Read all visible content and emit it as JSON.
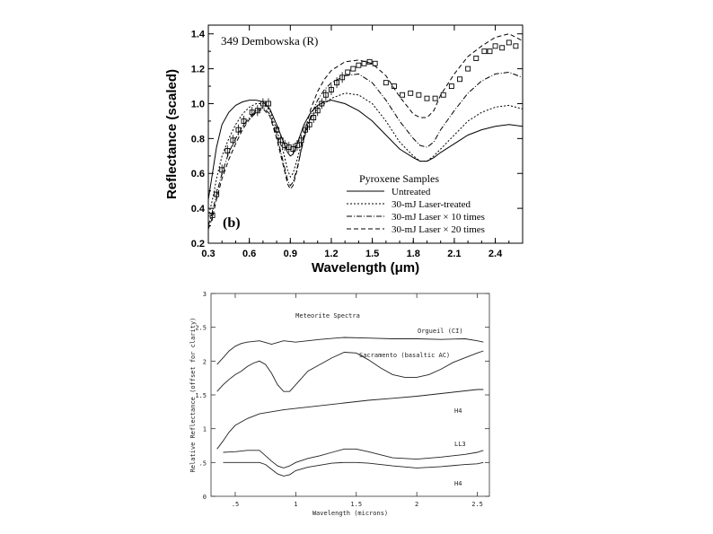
{
  "chart_data": [
    {
      "type": "line",
      "title": "349 Dembowska (R)",
      "panel_label": "(b)",
      "xlabel": "Wavelength (μm)",
      "ylabel": "Reflectance (scaled)",
      "xlim": [
        0.3,
        2.6
      ],
      "ylim": [
        0.2,
        1.45
      ],
      "xticks": [
        0.3,
        0.6,
        0.9,
        1.2,
        1.5,
        1.8,
        2.1,
        2.4
      ],
      "xtick_labels": [
        "0.3",
        "0.6",
        "0.9",
        "1.2",
        "1.5",
        "1.8",
        "2.1",
        "2.4"
      ],
      "yticks": [
        0.2,
        0.4,
        0.6,
        0.8,
        1.0,
        1.2,
        1.4
      ],
      "ytick_labels": [
        "0.2",
        "0.4",
        "0.6",
        "0.8",
        "1.0",
        "1.2",
        "1.4"
      ],
      "legend_title": "Pyroxene Samples",
      "legend_position": "bottom-right",
      "series": [
        {
          "name": "Untreated",
          "dash": "solid",
          "x": [
            0.3,
            0.33,
            0.36,
            0.4,
            0.45,
            0.5,
            0.55,
            0.6,
            0.65,
            0.7,
            0.75,
            0.8,
            0.85,
            0.88,
            0.9,
            0.92,
            0.95,
            1.0,
            1.05,
            1.1,
            1.15,
            1.2,
            1.3,
            1.4,
            1.5,
            1.6,
            1.7,
            1.8,
            1.85,
            1.9,
            1.95,
            2.0,
            2.1,
            2.2,
            2.3,
            2.4,
            2.5,
            2.6
          ],
          "y": [
            0.45,
            0.6,
            0.75,
            0.88,
            0.95,
            0.99,
            1.01,
            1.02,
            1.02,
            1.01,
            0.97,
            0.88,
            0.78,
            0.72,
            0.7,
            0.71,
            0.77,
            0.88,
            0.95,
            0.99,
            1.01,
            1.02,
            1.0,
            0.96,
            0.9,
            0.82,
            0.74,
            0.69,
            0.67,
            0.67,
            0.69,
            0.72,
            0.77,
            0.82,
            0.85,
            0.87,
            0.88,
            0.87
          ]
        },
        {
          "name": "30-mJ Laser-treated",
          "dash": "dotted",
          "x": [
            0.3,
            0.33,
            0.36,
            0.4,
            0.45,
            0.5,
            0.55,
            0.6,
            0.65,
            0.7,
            0.75,
            0.8,
            0.85,
            0.88,
            0.9,
            0.92,
            0.95,
            1.0,
            1.05,
            1.1,
            1.15,
            1.2,
            1.3,
            1.4,
            1.5,
            1.6,
            1.7,
            1.8,
            1.85,
            1.9,
            1.95,
            2.0,
            2.1,
            2.2,
            2.3,
            2.4,
            2.5,
            2.6
          ],
          "y": [
            0.35,
            0.45,
            0.57,
            0.7,
            0.8,
            0.88,
            0.94,
            0.98,
            1.0,
            1.0,
            0.96,
            0.85,
            0.72,
            0.62,
            0.58,
            0.6,
            0.68,
            0.82,
            0.92,
            0.97,
            1.0,
            1.03,
            1.06,
            1.05,
            1.0,
            0.9,
            0.78,
            0.7,
            0.67,
            0.67,
            0.7,
            0.74,
            0.82,
            0.9,
            0.95,
            0.98,
            0.99,
            0.97
          ]
        },
        {
          "name": "30-mJ Laser × 10 times",
          "dash": "dash-dot",
          "x": [
            0.3,
            0.33,
            0.36,
            0.4,
            0.45,
            0.5,
            0.55,
            0.6,
            0.65,
            0.7,
            0.75,
            0.8,
            0.85,
            0.88,
            0.9,
            0.92,
            0.95,
            1.0,
            1.05,
            1.1,
            1.15,
            1.2,
            1.3,
            1.4,
            1.5,
            1.6,
            1.7,
            1.8,
            1.85,
            1.9,
            1.95,
            2.0,
            2.1,
            2.2,
            2.3,
            2.4,
            2.5,
            2.6
          ],
          "y": [
            0.3,
            0.38,
            0.48,
            0.6,
            0.72,
            0.8,
            0.87,
            0.92,
            0.96,
            0.98,
            0.94,
            0.82,
            0.66,
            0.56,
            0.53,
            0.55,
            0.63,
            0.8,
            0.93,
            1.02,
            1.08,
            1.12,
            1.16,
            1.17,
            1.12,
            1.02,
            0.9,
            0.8,
            0.76,
            0.75,
            0.78,
            0.85,
            0.96,
            1.06,
            1.13,
            1.17,
            1.18,
            1.15
          ]
        },
        {
          "name": "30-mJ Laser × 20 times",
          "dash": "dashed",
          "x": [
            0.3,
            0.33,
            0.36,
            0.4,
            0.45,
            0.5,
            0.55,
            0.6,
            0.65,
            0.7,
            0.75,
            0.8,
            0.85,
            0.88,
            0.9,
            0.92,
            0.95,
            1.0,
            1.05,
            1.1,
            1.15,
            1.2,
            1.3,
            1.4,
            1.5,
            1.6,
            1.7,
            1.8,
            1.85,
            1.9,
            1.95,
            2.0,
            2.1,
            2.2,
            2.3,
            2.4,
            2.5,
            2.6
          ],
          "y": [
            0.28,
            0.35,
            0.45,
            0.57,
            0.68,
            0.77,
            0.85,
            0.91,
            0.95,
            0.97,
            0.93,
            0.8,
            0.64,
            0.54,
            0.51,
            0.53,
            0.62,
            0.82,
            0.97,
            1.07,
            1.14,
            1.19,
            1.24,
            1.25,
            1.23,
            1.16,
            1.04,
            0.94,
            0.92,
            0.92,
            0.96,
            1.05,
            1.17,
            1.27,
            1.33,
            1.38,
            1.4,
            1.36
          ]
        },
        {
          "name": "349 Dembowska (R)",
          "style": "markers",
          "x": [
            0.33,
            0.36,
            0.4,
            0.44,
            0.48,
            0.52,
            0.56,
            0.62,
            0.66,
            0.7,
            0.74,
            0.8,
            0.83,
            0.86,
            0.89,
            0.92,
            0.95,
            0.98,
            1.01,
            1.04,
            1.07,
            1.1,
            1.13,
            1.16,
            1.2,
            1.24,
            1.28,
            1.32,
            1.36,
            1.4,
            1.44,
            1.48,
            1.52,
            1.6,
            1.66,
            1.72,
            1.78,
            1.84,
            1.9,
            1.96,
            2.02,
            2.08,
            2.14,
            2.2,
            2.26,
            2.32,
            2.36,
            2.4,
            2.45,
            2.5,
            2.55
          ],
          "y": [
            0.36,
            0.48,
            0.62,
            0.73,
            0.79,
            0.85,
            0.9,
            0.95,
            0.96,
            1.0,
            1.0,
            0.85,
            0.79,
            0.76,
            0.75,
            0.74,
            0.76,
            0.79,
            0.85,
            0.88,
            0.92,
            0.96,
            1.0,
            1.05,
            1.08,
            1.12,
            1.15,
            1.18,
            1.2,
            1.22,
            1.23,
            1.24,
            1.23,
            1.12,
            1.1,
            1.05,
            1.06,
            1.05,
            1.03,
            1.03,
            1.05,
            1.1,
            1.14,
            1.2,
            1.26,
            1.3,
            1.3,
            1.33,
            1.32,
            1.35,
            1.33
          ]
        }
      ]
    },
    {
      "type": "line",
      "title": "Meteorite Spectra",
      "xlabel": "Wavelength (microns)",
      "ylabel": "Relative Reflectance (offset for clarity)",
      "xlim": [
        0.3,
        2.6
      ],
      "ylim": [
        0,
        3
      ],
      "xticks": [
        0.5,
        1.0,
        1.5,
        2.0,
        2.5
      ],
      "xtick_labels": [
        ".5",
        "1",
        "1.5",
        "2",
        "2.5"
      ],
      "yticks": [
        0,
        0.5,
        1.0,
        1.5,
        2.0,
        2.5,
        3.0
      ],
      "ytick_labels": [
        "0",
        ".5",
        "1",
        "1.5",
        "2",
        "2.5",
        "3"
      ],
      "series": [
        {
          "name": "Orgueil (CI)",
          "x": [
            0.35,
            0.4,
            0.45,
            0.5,
            0.55,
            0.6,
            0.7,
            0.8,
            0.9,
            1.0,
            1.2,
            1.4,
            1.6,
            1.8,
            2.0,
            2.2,
            2.4,
            2.5,
            2.55
          ],
          "y": [
            1.95,
            2.05,
            2.15,
            2.22,
            2.26,
            2.28,
            2.3,
            2.25,
            2.3,
            2.28,
            2.32,
            2.35,
            2.34,
            2.33,
            2.33,
            2.32,
            2.33,
            2.3,
            2.28
          ]
        },
        {
          "name": "Sacramento (basaltic AC)",
          "x": [
            0.35,
            0.4,
            0.45,
            0.5,
            0.55,
            0.6,
            0.65,
            0.7,
            0.75,
            0.8,
            0.85,
            0.9,
            0.95,
            1.0,
            1.1,
            1.2,
            1.3,
            1.4,
            1.5,
            1.6,
            1.7,
            1.8,
            1.9,
            2.0,
            2.1,
            2.2,
            2.3,
            2.4,
            2.5,
            2.55
          ],
          "y": [
            1.55,
            1.65,
            1.73,
            1.8,
            1.85,
            1.92,
            1.97,
            2.0,
            1.95,
            1.82,
            1.65,
            1.55,
            1.55,
            1.65,
            1.85,
            1.95,
            2.05,
            2.13,
            2.12,
            2.02,
            1.9,
            1.8,
            1.76,
            1.76,
            1.8,
            1.88,
            1.98,
            2.05,
            2.12,
            2.15
          ]
        },
        {
          "name": "H4",
          "x": [
            0.35,
            0.4,
            0.45,
            0.5,
            0.6,
            0.7,
            0.8,
            0.9,
            1.0,
            1.2,
            1.4,
            1.6,
            1.8,
            2.0,
            2.2,
            2.4,
            2.5,
            2.55
          ],
          "y": [
            0.7,
            0.82,
            0.95,
            1.05,
            1.15,
            1.22,
            1.25,
            1.28,
            1.3,
            1.34,
            1.38,
            1.42,
            1.45,
            1.48,
            1.52,
            1.56,
            1.58,
            1.58
          ]
        },
        {
          "name": "LL3",
          "x": [
            0.4,
            0.5,
            0.6,
            0.7,
            0.75,
            0.8,
            0.85,
            0.9,
            0.95,
            1.0,
            1.1,
            1.2,
            1.3,
            1.4,
            1.5,
            1.6,
            1.8,
            2.0,
            2.2,
            2.4,
            2.5,
            2.55
          ],
          "y": [
            0.65,
            0.66,
            0.68,
            0.68,
            0.6,
            0.52,
            0.45,
            0.42,
            0.45,
            0.5,
            0.56,
            0.6,
            0.65,
            0.7,
            0.7,
            0.66,
            0.57,
            0.55,
            0.58,
            0.62,
            0.65,
            0.68
          ]
        },
        {
          "name": "H4",
          "x": [
            0.4,
            0.5,
            0.6,
            0.7,
            0.75,
            0.8,
            0.85,
            0.9,
            0.95,
            1.0,
            1.1,
            1.2,
            1.3,
            1.4,
            1.5,
            1.6,
            1.8,
            2.0,
            2.2,
            2.4,
            2.5,
            2.55
          ],
          "y": [
            0.5,
            0.5,
            0.5,
            0.5,
            0.47,
            0.4,
            0.33,
            0.3,
            0.32,
            0.38,
            0.43,
            0.46,
            0.49,
            0.5,
            0.5,
            0.49,
            0.45,
            0.42,
            0.44,
            0.47,
            0.48,
            0.5
          ]
        }
      ]
    }
  ]
}
